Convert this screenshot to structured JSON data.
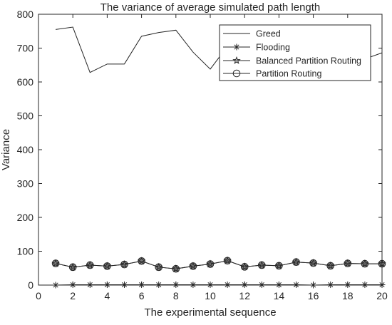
{
  "chart_data": {
    "type": "line",
    "title": "The variance of average simulated path length",
    "xlabel": "The experimental sequence",
    "ylabel": "Variance",
    "xlim": [
      0,
      20
    ],
    "ylim": [
      0,
      800
    ],
    "xticks": [
      0,
      2,
      4,
      6,
      8,
      10,
      12,
      14,
      16,
      18,
      20
    ],
    "yticks": [
      0,
      100,
      200,
      300,
      400,
      500,
      600,
      700,
      800
    ],
    "x": [
      1,
      2,
      3,
      4,
      5,
      6,
      7,
      8,
      9,
      10,
      11,
      12,
      13,
      14,
      15,
      16,
      17,
      18,
      19,
      20
    ],
    "legend_position": "top-right",
    "series": [
      {
        "name": "Greed",
        "marker": "none",
        "values": [
          755,
          762,
          628,
          653,
          653,
          735,
          746,
          753,
          688,
          638,
          705,
          712,
          700,
          698,
          702,
          695,
          700,
          703,
          668,
          686
        ]
      },
      {
        "name": "Flooding",
        "marker": "asterisk",
        "values": [
          0,
          1,
          1,
          1,
          1,
          1,
          1,
          1,
          1,
          1,
          1,
          1,
          1,
          1,
          1,
          0,
          1,
          1,
          1,
          1
        ]
      },
      {
        "name": "Balanced Partition Routing",
        "marker": "star",
        "values": [
          64,
          53,
          59,
          56,
          61,
          71,
          53,
          48,
          56,
          62,
          72,
          54,
          59,
          57,
          68,
          65,
          57,
          64,
          63,
          63
        ]
      },
      {
        "name": "Partition Routing",
        "marker": "circle",
        "values": [
          64,
          53,
          59,
          56,
          61,
          71,
          53,
          48,
          56,
          62,
          72,
          54,
          59,
          57,
          68,
          65,
          57,
          64,
          63,
          63
        ]
      }
    ],
    "colors": {
      "line": "#262626",
      "axis": "#262626",
      "circle_fill": "#8c8c8c"
    }
  }
}
